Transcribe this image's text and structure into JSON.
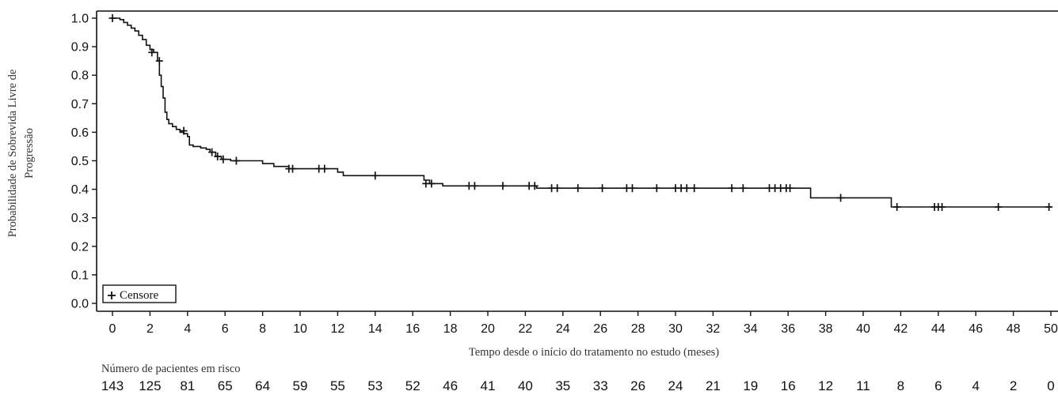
{
  "chart_data": {
    "type": "line",
    "title": "",
    "ylabel_lines": [
      "Probabilidade de Sobrevida Livre de",
      "Progressão"
    ],
    "xlabel": "Tempo desde o início do tratamento no estudo (meses)",
    "xlim": [
      0,
      50
    ],
    "ylim": [
      0.0,
      1.0
    ],
    "x_ticks": [
      0,
      2,
      4,
      6,
      8,
      10,
      12,
      14,
      16,
      18,
      20,
      22,
      24,
      26,
      28,
      30,
      32,
      34,
      36,
      38,
      40,
      42,
      44,
      46,
      48,
      50
    ],
    "y_ticks": [
      "0.0",
      "0.1",
      "0.2",
      "0.3",
      "0.4",
      "0.5",
      "0.6",
      "0.7",
      "0.8",
      "0.9",
      "1.0"
    ],
    "grid": false,
    "legend": {
      "position": "bottom-left",
      "label": "Censore",
      "marker": "+"
    },
    "steps": [
      [
        0,
        1.0
      ],
      [
        0.4,
        0.995
      ],
      [
        0.6,
        0.985
      ],
      [
        0.8,
        0.975
      ],
      [
        1.0,
        0.965
      ],
      [
        1.2,
        0.955
      ],
      [
        1.4,
        0.94
      ],
      [
        1.6,
        0.925
      ],
      [
        1.8,
        0.905
      ],
      [
        2.0,
        0.89
      ],
      [
        2.2,
        0.88
      ],
      [
        2.4,
        0.85
      ],
      [
        2.5,
        0.8
      ],
      [
        2.6,
        0.76
      ],
      [
        2.7,
        0.72
      ],
      [
        2.8,
        0.67
      ],
      [
        2.9,
        0.645
      ],
      [
        3.0,
        0.63
      ],
      [
        3.2,
        0.62
      ],
      [
        3.4,
        0.61
      ],
      [
        3.6,
        0.6
      ],
      [
        3.8,
        0.595
      ],
      [
        4.0,
        0.585
      ],
      [
        4.1,
        0.555
      ],
      [
        4.3,
        0.55
      ],
      [
        4.7,
        0.545
      ],
      [
        5.0,
        0.54
      ],
      [
        5.2,
        0.53
      ],
      [
        5.5,
        0.515
      ],
      [
        5.8,
        0.505
      ],
      [
        6.3,
        0.5
      ],
      [
        8.0,
        0.49
      ],
      [
        8.6,
        0.48
      ],
      [
        9.4,
        0.472
      ],
      [
        12.0,
        0.46
      ],
      [
        12.3,
        0.448
      ],
      [
        16.6,
        0.432
      ],
      [
        16.9,
        0.42
      ],
      [
        17.6,
        0.412
      ],
      [
        22.6,
        0.404
      ],
      [
        37.2,
        0.37
      ],
      [
        41.5,
        0.338
      ],
      [
        50,
        0.338
      ]
    ],
    "censored": [
      [
        0.0,
        1.0
      ],
      [
        2.1,
        0.88
      ],
      [
        2.5,
        0.85
      ],
      [
        3.8,
        0.605
      ],
      [
        5.3,
        0.53
      ],
      [
        5.6,
        0.515
      ],
      [
        5.9,
        0.505
      ],
      [
        6.6,
        0.5
      ],
      [
        9.4,
        0.472
      ],
      [
        9.6,
        0.472
      ],
      [
        11.0,
        0.472
      ],
      [
        11.3,
        0.472
      ],
      [
        14.0,
        0.448
      ],
      [
        16.7,
        0.42
      ],
      [
        17.0,
        0.42
      ],
      [
        19.0,
        0.412
      ],
      [
        19.3,
        0.412
      ],
      [
        20.8,
        0.412
      ],
      [
        22.2,
        0.412
      ],
      [
        22.5,
        0.412
      ],
      [
        23.4,
        0.404
      ],
      [
        23.7,
        0.404
      ],
      [
        24.8,
        0.404
      ],
      [
        26.1,
        0.404
      ],
      [
        27.4,
        0.404
      ],
      [
        27.7,
        0.404
      ],
      [
        29.0,
        0.404
      ],
      [
        30.0,
        0.404
      ],
      [
        30.3,
        0.404
      ],
      [
        30.6,
        0.404
      ],
      [
        31.0,
        0.404
      ],
      [
        33.0,
        0.404
      ],
      [
        33.6,
        0.404
      ],
      [
        35.0,
        0.404
      ],
      [
        35.3,
        0.404
      ],
      [
        35.6,
        0.404
      ],
      [
        35.9,
        0.404
      ],
      [
        36.1,
        0.404
      ],
      [
        38.8,
        0.37
      ],
      [
        41.8,
        0.338
      ],
      [
        43.8,
        0.338
      ],
      [
        44.0,
        0.338
      ],
      [
        44.2,
        0.338
      ],
      [
        47.2,
        0.338
      ],
      [
        49.9,
        0.338
      ]
    ],
    "risk_table": {
      "title": "Número de pacientes em risco",
      "at_times": [
        0,
        2,
        4,
        6,
        8,
        10,
        12,
        14,
        16,
        18,
        20,
        22,
        24,
        26,
        28,
        30,
        32,
        34,
        36,
        38,
        40,
        42,
        44,
        46,
        48,
        50
      ],
      "values": [
        "143",
        "125",
        "81",
        "65",
        "64",
        "59",
        "55",
        "53",
        "52",
        "46",
        "41",
        "40",
        "35",
        "33",
        "26",
        "24",
        "21",
        "19",
        "16",
        "12",
        "11",
        "8",
        "6",
        "4",
        "2",
        "0"
      ]
    }
  }
}
